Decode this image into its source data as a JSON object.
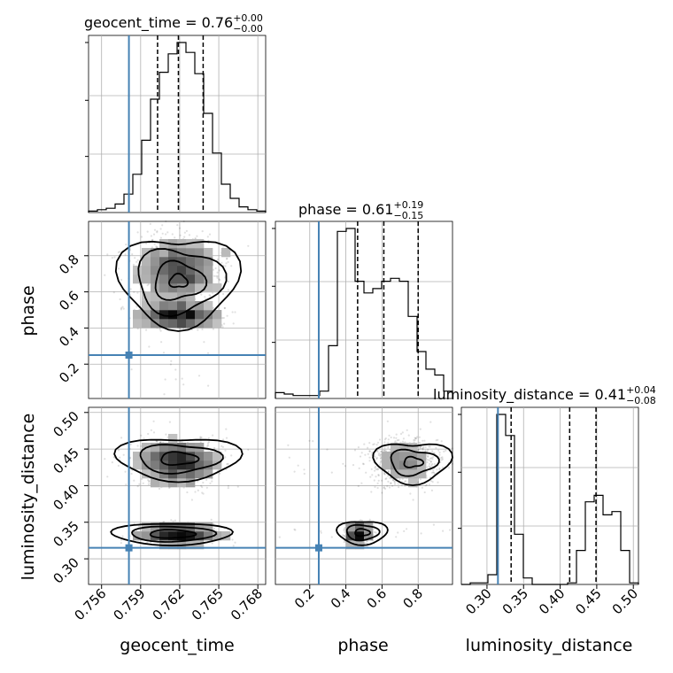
{
  "chart_data": {
    "type": "corner",
    "parameters": [
      "geocent_time",
      "phase",
      "luminosity_distance"
    ],
    "truths": {
      "geocent_time": 0.7581,
      "phase": 0.25,
      "luminosity_distance": 0.315
    },
    "ranges": {
      "geocent_time": [
        0.755,
        0.7686
      ],
      "phase": [
        0.01,
        0.99
      ],
      "luminosity_distance": [
        0.265,
        0.507
      ]
    },
    "titles": [
      {
        "param": "geocent_time",
        "text": "geocent_time = 0.76",
        "sup": "+0.00",
        "sub": "−0.00"
      },
      {
        "param": "phase",
        "text": "phase = 0.61",
        "sup": "+0.19",
        "sub": "−0.15"
      },
      {
        "param": "luminosity_distance",
        "text": "luminosity_distance = 0.41",
        "sup": "+0.04",
        "sub": "−0.08"
      }
    ],
    "axis_labels": {
      "x": [
        "geocent_time",
        "phase",
        "luminosity_distance"
      ],
      "y": [
        "phase",
        "luminosity_distance"
      ]
    },
    "ticks": {
      "geocent_time": {
        "values": [
          0.756,
          0.759,
          0.762,
          0.765,
          0.768
        ],
        "labels": [
          "0.756",
          "0.759",
          "0.762",
          "0.765",
          "0.768"
        ]
      },
      "phase": {
        "values": [
          0.2,
          0.4,
          0.6,
          0.8
        ],
        "labels": [
          "0.2",
          "0.4",
          "0.6",
          "0.8"
        ]
      },
      "luminosity_distance": {
        "values": [
          0.3,
          0.35,
          0.4,
          0.45,
          0.5
        ],
        "labels": [
          "0.30",
          "0.35",
          "0.40",
          "0.45",
          "0.50"
        ]
      }
    },
    "quantiles": {
      "geocent_time": [
        0.7603,
        0.7619,
        0.7638
      ],
      "phase": [
        0.465,
        0.61,
        0.8
      ],
      "luminosity_distance": [
        0.333,
        0.413,
        0.449
      ]
    },
    "histograms": {
      "geocent_time": {
        "bin_start": 0.755,
        "bin_width": 0.00068,
        "counts": [
          1,
          2,
          3,
          6,
          13,
          27,
          51,
          80,
          99,
          112,
          120,
          113,
          98,
          70,
          42,
          20,
          10,
          4,
          2,
          1
        ]
      },
      "phase": {
        "bin_start": 0.01,
        "bin_width": 0.049,
        "counts": [
          20,
          15,
          10,
          10,
          10,
          25,
          180,
          570,
          580,
          400,
          360,
          375,
          400,
          410,
          400,
          280,
          160,
          100,
          80,
          25
        ]
      },
      "luminosity_distance": {
        "bin_start": 0.265,
        "bin_width": 0.0121,
        "counts": [
          0,
          1,
          1,
          6,
          105,
          92,
          31,
          4,
          0,
          0,
          0,
          0,
          1,
          21,
          51,
          55,
          43,
          45,
          21,
          1
        ]
      }
    },
    "grid": true
  }
}
